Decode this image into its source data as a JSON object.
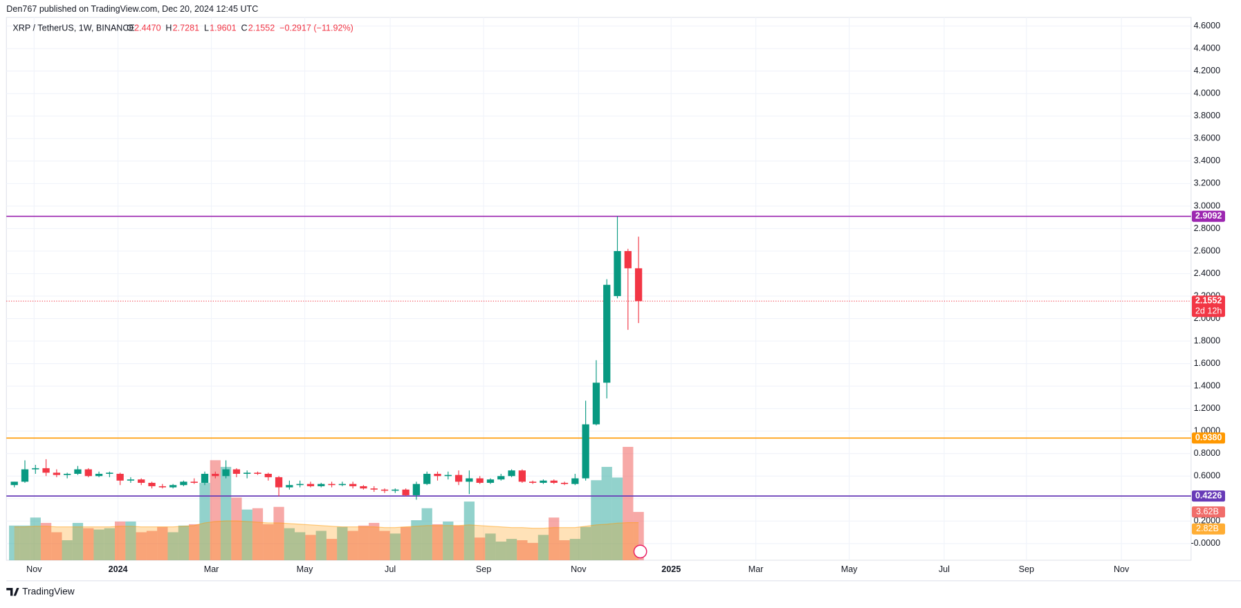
{
  "header": "Den767 published on TradingView.com, Dec 20, 2024 12:45 UTC",
  "footer": "TradingView",
  "chart_data": {
    "type": "candlestick",
    "title": "XRP / TetherUS, 1W, BINANCE",
    "ohlc_legend": [
      {
        "key": "O",
        "text": "2.4470"
      },
      {
        "key": "H",
        "text": "2.7281"
      },
      {
        "key": "L",
        "text": "1.9601"
      },
      {
        "key": "C",
        "text": "2.1552"
      }
    ],
    "change": "−0.2917 (−11.92%)",
    "categories": [
      null,
      null,
      null,
      null,
      null,
      null,
      null,
      null,
      null,
      null,
      null,
      null,
      null,
      null,
      null,
      null,
      null,
      null,
      null,
      null,
      null,
      null,
      null,
      null,
      null,
      null,
      null,
      null,
      null,
      null,
      null,
      null,
      null,
      null,
      null,
      null,
      null,
      null,
      null,
      null,
      null,
      null,
      null,
      null,
      null,
      null,
      null,
      null,
      null,
      null,
      null,
      null,
      null,
      null,
      null,
      null,
      null,
      null,
      null,
      null
    ],
    "open": [
      0.52,
      0.55,
      0.66,
      0.67,
      0.63,
      0.61,
      0.62,
      0.66,
      0.6,
      0.62,
      0.62,
      0.56,
      0.57,
      0.54,
      0.51,
      0.5,
      0.52,
      0.55,
      0.54,
      0.62,
      0.6,
      0.66,
      0.62,
      0.63,
      0.62,
      0.59,
      0.5,
      0.52,
      0.53,
      0.51,
      0.53,
      0.52,
      0.53,
      0.51,
      0.49,
      0.48,
      0.47,
      0.48,
      0.43,
      0.53,
      0.62,
      0.6,
      0.61,
      0.55,
      0.58,
      0.54,
      0.57,
      0.6,
      0.65,
      0.55,
      0.54,
      0.56,
      0.54,
      0.53,
      0.58,
      1.06,
      1.43,
      2.2,
      2.6,
      2.447
    ],
    "high": [
      0.55,
      0.74,
      0.7,
      0.75,
      0.66,
      0.63,
      0.69,
      0.67,
      0.64,
      0.64,
      0.63,
      0.59,
      0.58,
      0.55,
      0.53,
      0.53,
      0.56,
      0.58,
      0.64,
      0.64,
      0.74,
      0.67,
      0.65,
      0.64,
      0.63,
      0.6,
      0.56,
      0.56,
      0.55,
      0.54,
      0.55,
      0.55,
      0.55,
      0.52,
      0.51,
      0.49,
      0.49,
      0.49,
      0.55,
      0.64,
      0.64,
      0.64,
      0.65,
      0.65,
      0.6,
      0.58,
      0.62,
      0.66,
      0.66,
      0.56,
      0.57,
      0.57,
      0.55,
      0.62,
      1.27,
      1.63,
      2.35,
      2.9092,
      2.62,
      2.7281
    ],
    "low": [
      0.5,
      0.54,
      0.62,
      0.6,
      0.59,
      0.58,
      0.61,
      0.59,
      0.59,
      0.59,
      0.52,
      0.54,
      0.52,
      0.49,
      0.49,
      0.49,
      0.51,
      0.53,
      0.52,
      0.58,
      0.58,
      0.59,
      0.58,
      0.61,
      0.56,
      0.42,
      0.48,
      0.5,
      0.5,
      0.5,
      0.5,
      0.51,
      0.49,
      0.48,
      0.46,
      0.45,
      0.45,
      0.42,
      0.39,
      0.52,
      0.56,
      0.57,
      0.52,
      0.44,
      0.53,
      0.53,
      0.56,
      0.59,
      0.54,
      0.53,
      0.53,
      0.53,
      0.52,
      0.52,
      0.56,
      1.05,
      1.29,
      2.18,
      1.9,
      1.9601
    ],
    "close": [
      0.55,
      0.66,
      0.67,
      0.63,
      0.61,
      0.62,
      0.66,
      0.6,
      0.62,
      0.63,
      0.56,
      0.57,
      0.54,
      0.51,
      0.5,
      0.52,
      0.55,
      0.54,
      0.62,
      0.6,
      0.66,
      0.62,
      0.63,
      0.62,
      0.59,
      0.5,
      0.52,
      0.53,
      0.51,
      0.53,
      0.52,
      0.53,
      0.51,
      0.49,
      0.48,
      0.47,
      0.48,
      0.43,
      0.53,
      0.62,
      0.6,
      0.61,
      0.55,
      0.58,
      0.54,
      0.57,
      0.6,
      0.65,
      0.55,
      0.54,
      0.56,
      0.54,
      0.53,
      0.58,
      1.06,
      1.43,
      2.3,
      2.6,
      2.447,
      2.1552
    ],
    "volume": [
      2.6,
      2.6,
      3.2,
      2.8,
      2.1,
      1.5,
      2.8,
      2.4,
      2.3,
      2.4,
      2.9,
      2.9,
      2.1,
      2.2,
      2.5,
      2.1,
      2.6,
      2.7,
      5.8,
      7.5,
      7.0,
      4.7,
      3.8,
      3.9,
      2.7,
      4.0,
      2.4,
      2.1,
      1.9,
      2.2,
      1.6,
      2.5,
      2.2,
      2.6,
      2.8,
      2.2,
      2.0,
      2.5,
      3.0,
      3.9,
      2.7,
      2.9,
      2.6,
      4.4,
      1.7,
      2.0,
      1.4,
      1.6,
      1.5,
      1.3,
      1.9,
      3.2,
      1.5,
      1.6,
      2.5,
      6.0,
      7.0,
      6.2,
      8.5,
      3.62
    ],
    "volume_ma": [
      2.5,
      2.5,
      2.55,
      2.55,
      2.5,
      2.5,
      2.5,
      2.5,
      2.5,
      2.5,
      2.55,
      2.55,
      2.5,
      2.5,
      2.5,
      2.5,
      2.55,
      2.6,
      2.8,
      2.9,
      2.95,
      2.95,
      2.9,
      2.85,
      2.8,
      2.8,
      2.75,
      2.7,
      2.65,
      2.6,
      2.55,
      2.5,
      2.5,
      2.5,
      2.5,
      2.45,
      2.45,
      2.5,
      2.55,
      2.6,
      2.6,
      2.6,
      2.6,
      2.65,
      2.6,
      2.55,
      2.5,
      2.45,
      2.45,
      2.4,
      2.4,
      2.45,
      2.45,
      2.45,
      2.55,
      2.65,
      2.7,
      2.78,
      2.82,
      2.82
    ],
    "volume_label": "3.62B",
    "volume_ma_label": "2.82B",
    "up_color": "#089981",
    "down_color": "#f23645",
    "xtick_labels": [
      "Nov",
      "2024",
      "Mar",
      "May",
      "Jul",
      "Sep",
      "Nov",
      "2025",
      "Mar",
      "May",
      "Jul",
      "Sep",
      "Nov"
    ],
    "ylim": [
      -0.148,
      4.677
    ],
    "yticks": [
      {
        "value": 0,
        "label": "-0.0000"
      },
      {
        "value": 0.2,
        "label": "0.2000"
      },
      {
        "value": 0.4,
        "label": "0.4000"
      },
      {
        "value": 0.6,
        "label": "0.6000"
      },
      {
        "value": 0.8,
        "label": "0.8000"
      },
      {
        "value": 1,
        "label": "1.0000"
      },
      {
        "value": 1.2,
        "label": "1.2000"
      },
      {
        "value": 1.4,
        "label": "1.4000"
      },
      {
        "value": 1.6,
        "label": "1.6000"
      },
      {
        "value": 1.8,
        "label": "1.8000"
      },
      {
        "value": 2,
        "label": "2.0000"
      },
      {
        "value": 2.2,
        "label": "2.2000"
      },
      {
        "value": 2.4,
        "label": "2.4000"
      },
      {
        "value": 2.6,
        "label": "2.6000"
      },
      {
        "value": 2.8,
        "label": "2.8000"
      },
      {
        "value": 3,
        "label": "3.0000"
      },
      {
        "value": 3.2,
        "label": "3.2000"
      },
      {
        "value": 3.4,
        "label": "3.4000"
      },
      {
        "value": 3.6,
        "label": "3.6000"
      },
      {
        "value": 3.8,
        "label": "3.8000"
      },
      {
        "value": 4,
        "label": "4.0000"
      },
      {
        "value": 4.2,
        "label": "4.2000"
      },
      {
        "value": 4.4,
        "label": "4.4000"
      },
      {
        "value": 4.6,
        "label": "4.6000"
      }
    ],
    "y2lim": [
      0,
      40.7
    ],
    "price_lines": [
      {
        "value": 2.9092,
        "label": "2.9092",
        "color": "#9c27b0"
      },
      {
        "value": 0.938,
        "label": "0.9380",
        "color": "#ff9800"
      },
      {
        "value": 0.4226,
        "label": "0.4226",
        "color": "#673ab7"
      }
    ],
    "last_price": {
      "value": 2.1552,
      "label": "2.1552",
      "countdown": "2d 12h"
    },
    "grid": true
  }
}
